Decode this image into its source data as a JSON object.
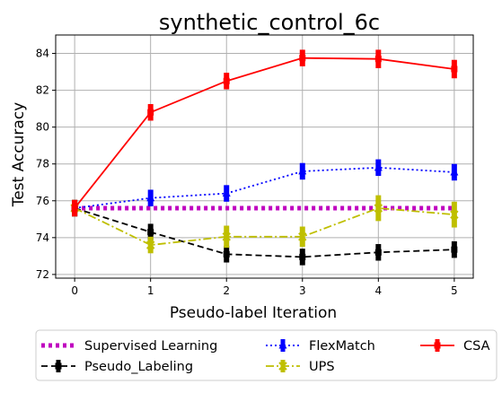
{
  "chart_data": {
    "type": "line",
    "title": "synthetic_control_6c",
    "xlabel": "Pseudo-label Iteration",
    "ylabel": "Test Accuracy",
    "xlim": [
      -0.25,
      5.25
    ],
    "ylim": [
      71.8,
      85.0
    ],
    "x_ticks": [
      0,
      1,
      2,
      3,
      4,
      5
    ],
    "y_ticks": [
      72,
      74,
      76,
      78,
      80,
      82,
      84
    ],
    "grid": true,
    "legend": {
      "placement": "bottom",
      "columns": 3
    },
    "x": [
      0,
      1,
      2,
      3,
      4,
      5
    ],
    "series": [
      {
        "name": "Supervised Learning",
        "values": [
          75.6,
          75.6,
          75.6,
          75.6,
          75.6,
          75.6
        ],
        "errors": [
          0,
          0,
          0,
          0,
          0,
          0
        ],
        "color": "#bf00bf",
        "style": "dotted-thick",
        "marker": "none"
      },
      {
        "name": "Pseudo_Labeling",
        "values": [
          75.6,
          74.3,
          73.1,
          72.95,
          73.2,
          73.35
        ],
        "errors": [
          0.45,
          0.45,
          0.45,
          0.45,
          0.45,
          0.45
        ],
        "color": "#000000",
        "style": "dashed",
        "marker": "square"
      },
      {
        "name": "FlexMatch",
        "values": [
          75.6,
          76.15,
          76.4,
          77.6,
          77.8,
          77.55
        ],
        "errors": [
          0.45,
          0.45,
          0.45,
          0.45,
          0.45,
          0.45
        ],
        "color": "#0000ff",
        "style": "dotted",
        "marker": "triangle"
      },
      {
        "name": "UPS",
        "values": [
          75.6,
          73.6,
          74.05,
          74.05,
          75.6,
          75.25
        ],
        "errors": [
          0.45,
          0.45,
          0.6,
          0.55,
          0.7,
          0.7
        ],
        "color": "#bfbf00",
        "style": "dashdot",
        "marker": "x"
      },
      {
        "name": "CSA",
        "values": [
          75.6,
          80.8,
          82.5,
          83.75,
          83.7,
          83.15
        ],
        "errors": [
          0.45,
          0.45,
          0.45,
          0.45,
          0.5,
          0.5
        ],
        "color": "#ff0000",
        "style": "solid",
        "marker": "square"
      }
    ]
  }
}
